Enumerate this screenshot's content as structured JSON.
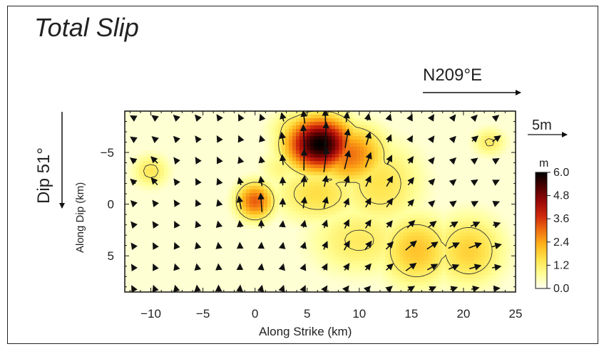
{
  "title": "Total Slip",
  "strike_direction_label": "N209°E",
  "dip_label": "Dip 51°",
  "scale_arrow_label": "5m",
  "colorbar": {
    "unit": "m",
    "ticks": [
      "6.0",
      "4.8",
      "3.6",
      "2.4",
      "1.2",
      "0.0"
    ],
    "colors": [
      "#fffff2",
      "#ffff99",
      "#ffe44d",
      "#ffb31a",
      "#f07010",
      "#d12a0a",
      "#9a0808",
      "#4a0000",
      "#000000"
    ]
  },
  "chart_data": {
    "type": "heatmap",
    "title": "Total Slip",
    "xlabel": "Along Strike (km)",
    "ylabel": "Along Dip (km)",
    "xlim": [
      -12.5,
      25
    ],
    "ylim": [
      -9,
      8.5
    ],
    "y_inverted": true,
    "xticks": [
      -10,
      -5,
      0,
      5,
      10,
      15,
      20,
      25
    ],
    "yticks": [
      -5,
      0,
      5
    ],
    "value_unit": "m",
    "value_range": [
      0,
      6
    ],
    "contour_level": 1.2,
    "slip_patches": [
      {
        "x": 6.2,
        "y": -5.8,
        "peak": 6.0,
        "sx": 2.2,
        "sy": 1.8
      },
      {
        "x": 9.0,
        "y": -4.8,
        "peak": 3.0,
        "sx": 2.5,
        "sy": 2.0
      },
      {
        "x": 4.5,
        "y": -7.0,
        "peak": 2.0,
        "sx": 2.0,
        "sy": 1.5
      },
      {
        "x": 0.0,
        "y": -0.3,
        "peak": 3.2,
        "sx": 1.3,
        "sy": 1.3
      },
      {
        "x": 6.0,
        "y": -1.0,
        "peak": 1.6,
        "sx": 3.0,
        "sy": 2.0
      },
      {
        "x": 12.0,
        "y": -2.0,
        "peak": 1.5,
        "sx": 3.0,
        "sy": 3.0
      },
      {
        "x": 15.5,
        "y": 4.5,
        "peak": 2.0,
        "sx": 2.5,
        "sy": 2.5
      },
      {
        "x": 20.5,
        "y": 4.5,
        "peak": 1.8,
        "sx": 2.5,
        "sy": 2.5
      },
      {
        "x": 10.0,
        "y": 3.5,
        "peak": 1.3,
        "sx": 3.5,
        "sy": 2.5
      },
      {
        "x": -10.0,
        "y": -3.2,
        "peak": 1.4,
        "sx": 1.3,
        "sy": 1.2
      },
      {
        "x": 22.5,
        "y": -6.0,
        "peak": 1.3,
        "sx": 1.2,
        "sy": 1.0
      },
      {
        "x": 2.5,
        "y": -3.5,
        "peak": 1.0,
        "sx": 1.5,
        "sy": 1.5
      }
    ]
  }
}
